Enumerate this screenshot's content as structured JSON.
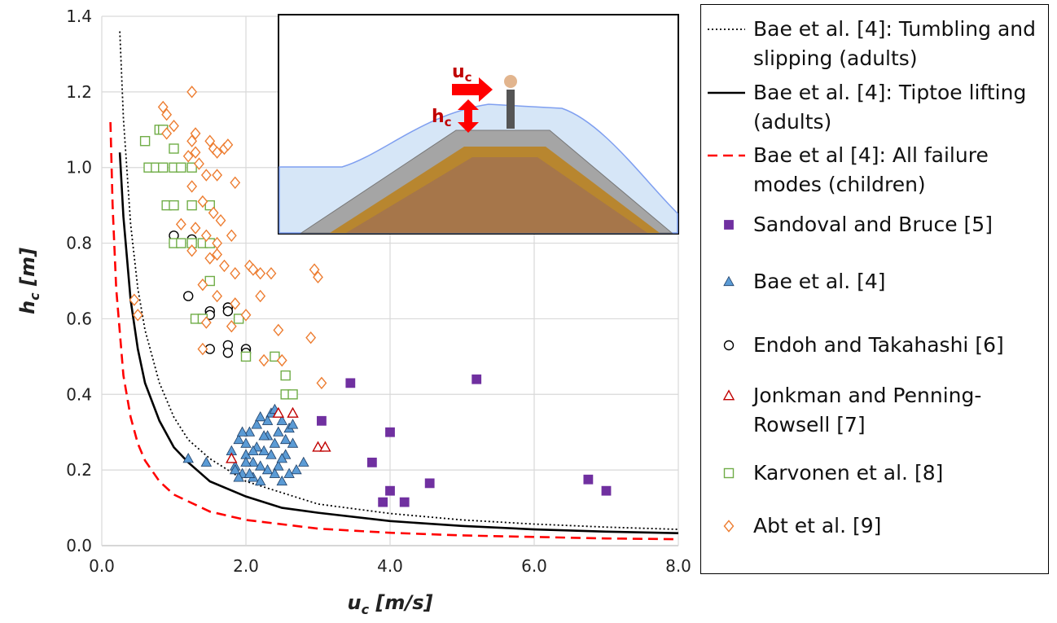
{
  "chart_data": {
    "type": "scatter",
    "xlabel": {
      "symbol": "u",
      "subscript": "c",
      "unit": " [m/s]"
    },
    "ylabel": {
      "symbol": "h",
      "subscript": "c",
      "unit": " [m]"
    },
    "xlim": [
      0,
      8
    ],
    "ylim": [
      0,
      1.4
    ],
    "xticks": [
      {
        "value": 0,
        "label": "0.0"
      },
      {
        "value": 2,
        "label": "2.0"
      },
      {
        "value": 4,
        "label": "4.0"
      },
      {
        "value": 6,
        "label": "6.0"
      },
      {
        "value": 8,
        "label": "8.0"
      }
    ],
    "yticks": [
      {
        "value": 0,
        "label": "0.0"
      },
      0.2,
      0.4,
      0.6,
      0.8,
      {
        "value": 1,
        "label": "1.0"
      },
      1.2,
      1.4
    ],
    "grid": true,
    "legend": "right",
    "inset": {
      "velocity": {
        "symbol": "u",
        "subscript": "c"
      },
      "depth": {
        "symbol": "h",
        "subscript": "c"
      }
    },
    "series": [
      {
        "name": "Bae et al. [4]: Tumbling and slipping (adults)",
        "kind": "line",
        "style": "dotted",
        "color": "#000000",
        "x": [
          0.25,
          0.3,
          0.4,
          0.5,
          0.6,
          0.8,
          1.0,
          1.2,
          1.5,
          2,
          2.5,
          3,
          4,
          5,
          6,
          7,
          8
        ],
        "y": [
          1.36,
          1.13,
          0.85,
          0.68,
          0.57,
          0.43,
          0.34,
          0.28,
          0.23,
          0.17,
          0.14,
          0.11,
          0.085,
          0.068,
          0.057,
          0.049,
          0.043
        ]
      },
      {
        "name": "Bae et al. [4]: Tiptoe lifting (adults)",
        "kind": "line",
        "style": "solid",
        "color": "#000000",
        "x": [
          0.25,
          0.3,
          0.4,
          0.5,
          0.6,
          0.8,
          1.0,
          1.2,
          1.5,
          2,
          2.5,
          3,
          4,
          5,
          6,
          7,
          8
        ],
        "y": [
          1.04,
          0.87,
          0.65,
          0.52,
          0.43,
          0.33,
          0.26,
          0.22,
          0.17,
          0.13,
          0.1,
          0.087,
          0.065,
          0.052,
          0.043,
          0.037,
          0.033
        ]
      },
      {
        "name": "Bae et al [4]: All failure modes (children)",
        "kind": "line",
        "style": "dashed",
        "color": "#ff0000",
        "x": [
          0.12,
          0.15,
          0.2,
          0.3,
          0.4,
          0.5,
          0.6,
          0.8,
          1,
          1.5,
          2,
          3,
          4,
          5,
          6,
          7,
          8
        ],
        "y": [
          1.12,
          0.9,
          0.68,
          0.45,
          0.34,
          0.27,
          0.225,
          0.17,
          0.135,
          0.09,
          0.068,
          0.045,
          0.034,
          0.027,
          0.023,
          0.019,
          0.017
        ]
      },
      {
        "name": "Sandoval and Bruce [5]",
        "kind": "points",
        "marker": "square",
        "filled": true,
        "color": "#7030a0",
        "x": [
          3.45,
          5.2,
          3.05,
          4.0,
          3.75,
          4.55,
          4.0,
          3.9,
          4.2,
          6.75,
          7.0
        ],
        "y": [
          0.43,
          0.44,
          0.33,
          0.3,
          0.22,
          0.165,
          0.145,
          0.115,
          0.115,
          0.175,
          0.145
        ]
      },
      {
        "name": "Bae et al. [4]",
        "kind": "points",
        "marker": "triangle",
        "filled": true,
        "color": "#5b9bd5",
        "x": [
          1.2,
          1.45,
          1.8,
          1.85,
          1.9,
          1.95,
          2.0,
          2.05,
          2.1,
          2.15,
          2.2,
          2.25,
          2.3,
          2.35,
          2.4,
          2.45,
          2.5,
          2.55,
          2.6,
          2.65,
          2.7,
          2.8,
          1.9,
          2.0,
          2.1,
          2.2,
          2.3,
          2.4,
          2.5,
          2.6,
          1.95,
          2.05,
          2.15,
          2.25,
          2.35,
          2.45,
          2.55,
          2.65,
          2.2,
          2.3,
          2.4,
          2.5,
          2.1,
          2.0,
          1.85
        ],
        "y": [
          0.23,
          0.22,
          0.25,
          0.21,
          0.28,
          0.19,
          0.27,
          0.3,
          0.22,
          0.32,
          0.34,
          0.25,
          0.29,
          0.35,
          0.36,
          0.21,
          0.33,
          0.24,
          0.31,
          0.27,
          0.2,
          0.22,
          0.18,
          0.24,
          0.18,
          0.17,
          0.2,
          0.19,
          0.17,
          0.19,
          0.3,
          0.19,
          0.26,
          0.29,
          0.24,
          0.3,
          0.28,
          0.32,
          0.21,
          0.33,
          0.27,
          0.23,
          0.25,
          0.22,
          0.2
        ]
      },
      {
        "name": "Endoh and Takahashi [6]",
        "kind": "points",
        "marker": "circle",
        "filled": false,
        "color": "#000000",
        "x": [
          1.0,
          1.25,
          1.2,
          1.5,
          1.5,
          1.75,
          1.75,
          1.5,
          1.75,
          1.75,
          2.0,
          2.0
        ],
        "y": [
          0.82,
          0.81,
          0.66,
          0.62,
          0.61,
          0.63,
          0.62,
          0.52,
          0.53,
          0.51,
          0.52,
          0.51
        ]
      },
      {
        "name": "Jonkman and Penning-Rowsell [7]",
        "kind": "points",
        "marker": "triangle",
        "filled": false,
        "color": "#c00000",
        "x": [
          2.45,
          2.65,
          3.0,
          3.1,
          1.8
        ],
        "y": [
          0.35,
          0.35,
          0.26,
          0.26,
          0.23
        ]
      },
      {
        "name": "Karvonen et al. [8]",
        "kind": "points",
        "marker": "square",
        "filled": false,
        "color": "#70ad47",
        "x": [
          0.6,
          0.8,
          0.85,
          0.65,
          0.75,
          0.85,
          1.0,
          1.0,
          1.1,
          1.25,
          0.9,
          1.0,
          1.25,
          1.5,
          1.0,
          1.1,
          1.25,
          1.4,
          1.5,
          1.5,
          1.3,
          1.4,
          1.9,
          2.0,
          2.4,
          2.55,
          2.55,
          2.65
        ],
        "y": [
          1.07,
          1.1,
          1.1,
          1.0,
          1.0,
          1.0,
          1.05,
          1.0,
          1.0,
          1.0,
          0.9,
          0.9,
          0.9,
          0.9,
          0.8,
          0.8,
          0.8,
          0.8,
          0.8,
          0.7,
          0.6,
          0.6,
          0.6,
          0.5,
          0.5,
          0.45,
          0.4,
          0.4
        ],
        "note_free": true
      },
      {
        "name": "Abt et al. [9]",
        "kind": "points",
        "marker": "diamond",
        "filled": false,
        "color": "#ed7d31",
        "x": [
          1.25,
          0.85,
          0.9,
          1.0,
          0.9,
          1.3,
          1.25,
          1.3,
          1.5,
          1.55,
          1.6,
          1.7,
          1.75,
          1.2,
          1.35,
          1.45,
          1.6,
          1.85,
          1.25,
          1.4,
          1.55,
          1.65,
          1.1,
          1.3,
          1.45,
          1.6,
          1.8,
          1.25,
          1.5,
          1.6,
          1.7,
          1.85,
          2.05,
          2.1,
          2.2,
          2.35,
          2.95,
          3.0,
          1.4,
          1.6,
          1.85,
          2.0,
          2.2,
          0.45,
          0.5,
          1.45,
          1.8,
          2.45,
          2.9,
          1.4,
          2.25,
          2.5,
          3.05
        ],
        "y": [
          1.2,
          1.16,
          1.14,
          1.11,
          1.09,
          1.09,
          1.07,
          1.04,
          1.07,
          1.05,
          1.04,
          1.05,
          1.06,
          1.03,
          1.01,
          0.98,
          0.98,
          0.96,
          0.95,
          0.91,
          0.88,
          0.86,
          0.85,
          0.84,
          0.82,
          0.8,
          0.82,
          0.78,
          0.76,
          0.77,
          0.74,
          0.72,
          0.74,
          0.73,
          0.72,
          0.72,
          0.73,
          0.71,
          0.69,
          0.66,
          0.64,
          0.61,
          0.66,
          0.65,
          0.61,
          0.59,
          0.58,
          0.57,
          0.55,
          0.52,
          0.49,
          0.49,
          0.43
        ]
      }
    ]
  }
}
